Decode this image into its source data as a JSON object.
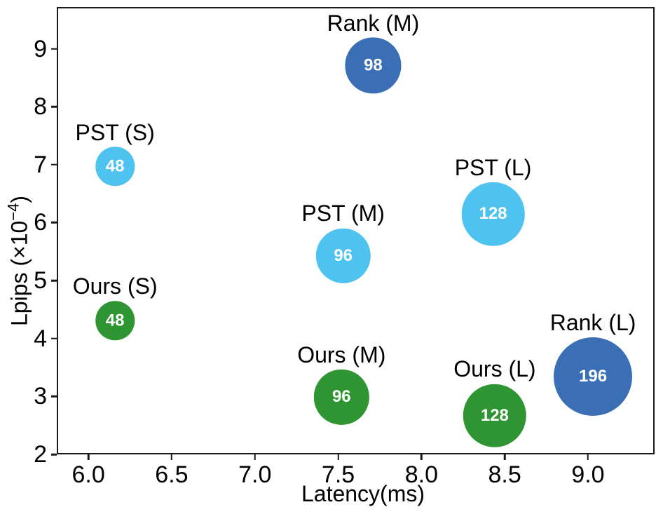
{
  "figure": {
    "xlabel": "Latency(ms)",
    "ylabel_base": "Lpips (×10",
    "ylabel_sup": "−4",
    "ylabel_end": ")"
  },
  "chart_data": {
    "type": "scatter",
    "subtype": "bubble",
    "title": "",
    "xlabel": "Latency(ms)",
    "ylabel": "Lpips (×10^−4)",
    "xlim": [
      5.81,
      9.4
    ],
    "ylim": [
      2.0,
      9.72
    ],
    "xticks": [
      "6.0",
      "6.5",
      "7.0",
      "7.5",
      "8.0",
      "8.5",
      "9.0"
    ],
    "yticks": [
      "2",
      "3",
      "4",
      "5",
      "6",
      "7",
      "8",
      "9"
    ],
    "grid": false,
    "legend": "none",
    "bubble_radius_px_per_sqrt_value": 4,
    "series": [
      {
        "name": "PST",
        "color": "#4FC3EF",
        "points": [
          {
            "label": "PST (S)",
            "x": 6.16,
            "y": 6.97,
            "value": 48
          },
          {
            "label": "PST (M)",
            "x": 7.53,
            "y": 5.43,
            "value": 96
          },
          {
            "label": "PST (L)",
            "x": 8.43,
            "y": 6.15,
            "value": 128
          }
        ]
      },
      {
        "name": "Ours",
        "color": "#2E9532",
        "points": [
          {
            "label": "Ours (S)",
            "x": 6.16,
            "y": 4.31,
            "value": 48
          },
          {
            "label": "Ours (M)",
            "x": 7.52,
            "y": 2.99,
            "value": 96
          },
          {
            "label": "Ours (L)",
            "x": 8.44,
            "y": 2.67,
            "value": 128
          }
        ]
      },
      {
        "name": "Rank",
        "color": "#3A6EB5",
        "points": [
          {
            "label": "Rank (M)",
            "x": 7.71,
            "y": 8.71,
            "value": 98
          },
          {
            "label": "Rank (L)",
            "x": 9.03,
            "y": 3.34,
            "value": 196
          }
        ]
      }
    ]
  }
}
